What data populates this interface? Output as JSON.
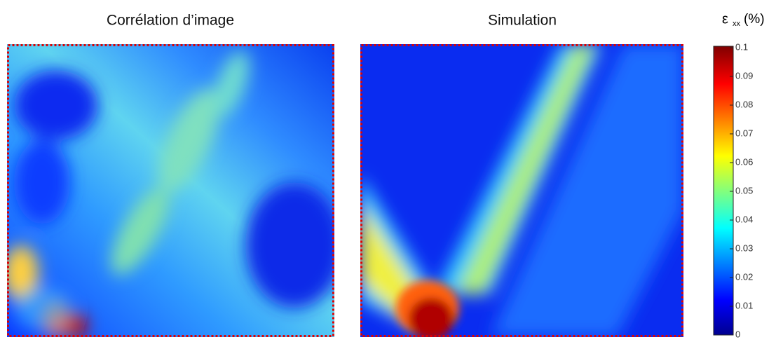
{
  "panels": [
    {
      "title": "Corrélation d’image"
    },
    {
      "title": "Simulation"
    }
  ],
  "colorbar": {
    "symbol": "ε",
    "subscript": "xx",
    "unit": "(%)",
    "lim": [
      0,
      0.1
    ],
    "ticks": [
      0,
      0.01,
      0.02,
      0.03,
      0.04,
      0.05,
      0.06,
      0.07,
      0.08,
      0.09,
      0.1
    ]
  }
}
